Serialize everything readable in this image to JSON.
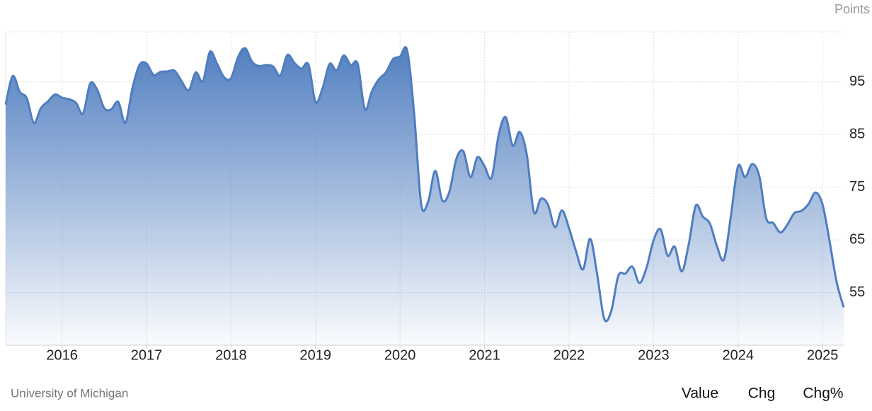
{
  "chart_data": {
    "type": "area",
    "y_label": "Points",
    "source": "University of Michigan",
    "color": "#4f7dbf",
    "grid": true,
    "xlim": [
      "2015-05",
      "2025-04"
    ],
    "xticks": [
      "2016",
      "2017",
      "2018",
      "2019",
      "2020",
      "2021",
      "2022",
      "2023",
      "2024",
      "2025"
    ],
    "ylim": [
      45,
      104.5
    ],
    "yticks": [
      55,
      65,
      75,
      85,
      95
    ],
    "x": [
      "2015-05",
      "2015-06",
      "2015-07",
      "2015-08",
      "2015-09",
      "2015-10",
      "2015-11",
      "2015-12",
      "2016-01",
      "2016-02",
      "2016-03",
      "2016-04",
      "2016-05",
      "2016-06",
      "2016-07",
      "2016-08",
      "2016-09",
      "2016-10",
      "2016-11",
      "2016-12",
      "2017-01",
      "2017-02",
      "2017-03",
      "2017-04",
      "2017-05",
      "2017-06",
      "2017-07",
      "2017-08",
      "2017-09",
      "2017-10",
      "2017-11",
      "2017-12",
      "2018-01",
      "2018-02",
      "2018-03",
      "2018-04",
      "2018-05",
      "2018-06",
      "2018-07",
      "2018-08",
      "2018-09",
      "2018-10",
      "2018-11",
      "2018-12",
      "2019-01",
      "2019-02",
      "2019-03",
      "2019-04",
      "2019-05",
      "2019-06",
      "2019-07",
      "2019-08",
      "2019-09",
      "2019-10",
      "2019-11",
      "2019-12",
      "2020-01",
      "2020-02",
      "2020-03",
      "2020-04",
      "2020-05",
      "2020-06",
      "2020-07",
      "2020-08",
      "2020-09",
      "2020-10",
      "2020-11",
      "2020-12",
      "2021-01",
      "2021-02",
      "2021-03",
      "2021-04",
      "2021-05",
      "2021-06",
      "2021-07",
      "2021-08",
      "2021-09",
      "2021-10",
      "2021-11",
      "2021-12",
      "2022-01",
      "2022-02",
      "2022-03",
      "2022-04",
      "2022-05",
      "2022-06",
      "2022-07",
      "2022-08",
      "2022-09",
      "2022-10",
      "2022-11",
      "2022-12",
      "2023-01",
      "2023-02",
      "2023-03",
      "2023-04",
      "2023-05",
      "2023-06",
      "2023-07",
      "2023-08",
      "2023-09",
      "2023-10",
      "2023-11",
      "2023-12",
      "2024-01",
      "2024-02",
      "2024-03",
      "2024-04",
      "2024-05",
      "2024-06",
      "2024-07",
      "2024-08",
      "2024-09",
      "2024-10",
      "2024-11",
      "2024-12",
      "2025-01",
      "2025-02",
      "2025-03",
      "2025-04"
    ],
    "values": [
      90.7,
      96.1,
      93.1,
      91.9,
      87.2,
      90.0,
      91.3,
      92.6,
      92.0,
      91.7,
      91.0,
      89.0,
      94.7,
      93.5,
      90.0,
      89.8,
      91.2,
      87.2,
      93.8,
      98.2,
      98.5,
      96.3,
      96.9,
      97.0,
      97.1,
      95.1,
      93.4,
      96.8,
      95.1,
      100.7,
      98.5,
      95.9,
      95.7,
      99.7,
      101.4,
      98.8,
      98.0,
      98.2,
      97.9,
      96.2,
      100.1,
      98.6,
      97.5,
      98.3,
      91.2,
      93.8,
      98.4,
      97.2,
      100.0,
      98.2,
      98.4,
      89.8,
      93.2,
      95.5,
      96.8,
      99.3,
      99.8,
      101.0,
      89.1,
      71.8,
      72.3,
      78.1,
      72.5,
      74.1,
      80.4,
      81.8,
      76.9,
      80.7,
      79.0,
      76.8,
      84.9,
      88.3,
      82.9,
      85.5,
      81.2,
      70.3,
      72.8,
      71.7,
      67.4,
      70.6,
      67.2,
      62.8,
      59.4,
      65.2,
      58.4,
      50.0,
      51.5,
      58.2,
      58.6,
      59.9,
      56.8,
      59.7,
      64.9,
      67.0,
      62.0,
      63.7,
      59.0,
      64.2,
      71.5,
      69.4,
      68.1,
      63.8,
      61.3,
      69.7,
      79.0,
      76.9,
      79.4,
      77.2,
      69.1,
      68.2,
      66.4,
      67.9,
      70.1,
      70.5,
      71.8,
      74.0,
      71.7,
      64.7,
      57.0,
      52.2
    ]
  },
  "controls": {
    "tabs": [
      "Value",
      "Chg",
      "Chg%"
    ],
    "active": "Value"
  }
}
